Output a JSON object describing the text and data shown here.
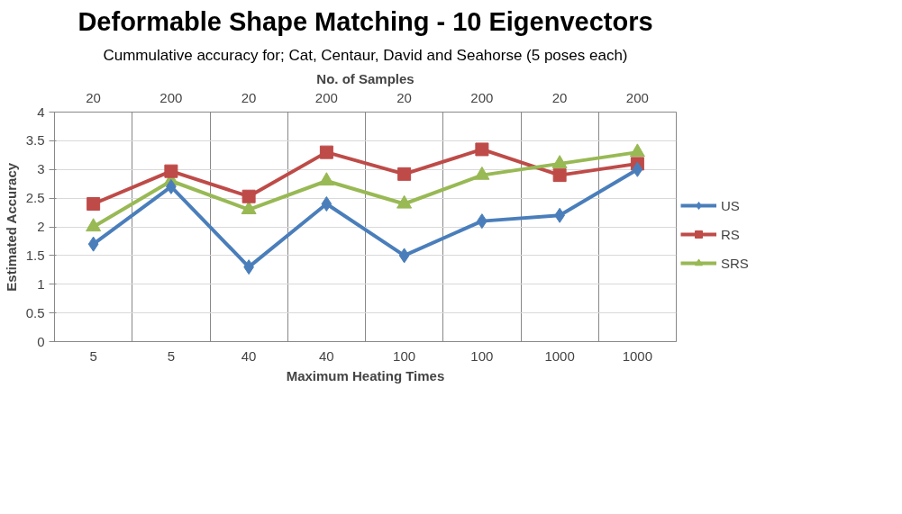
{
  "chart_data": {
    "type": "line",
    "title": "Deformable Shape Matching - 10 Eigenvectors",
    "subtitle": "Cummulative accuracy for; Cat, Centaur, David and Seahorse (5 poses each)",
    "xlabel": "Maximum Heating Times",
    "x2label": "No. of Samples",
    "ylabel": "Estimated Accuracy",
    "categories": [
      "5",
      "5",
      "40",
      "40",
      "100",
      "100",
      "1000",
      "1000"
    ],
    "annotations": [
      "20",
      "200",
      "20",
      "200",
      "20",
      "200",
      "20",
      "200"
    ],
    "ylim": [
      0,
      4
    ],
    "yticks": [
      0,
      0.5,
      1,
      1.5,
      2,
      2.5,
      3,
      3.5,
      4
    ],
    "series": [
      {
        "name": "US",
        "color": "#4a7ebb",
        "marker": "diamond",
        "values": [
          1.7,
          2.7,
          1.3,
          2.4,
          1.5,
          2.1,
          2.2,
          3.0
        ]
      },
      {
        "name": "RS",
        "color": "#be4b48",
        "marker": "square",
        "values": [
          2.4,
          2.97,
          2.53,
          3.3,
          2.92,
          3.35,
          2.9,
          3.1
        ]
      },
      {
        "name": "SRS",
        "color": "#98b954",
        "marker": "triangle",
        "values": [
          2.0,
          2.8,
          2.3,
          2.8,
          2.4,
          2.9,
          3.1,
          3.3
        ]
      }
    ],
    "grid": true,
    "legend": "right",
    "line_style": "solid"
  }
}
